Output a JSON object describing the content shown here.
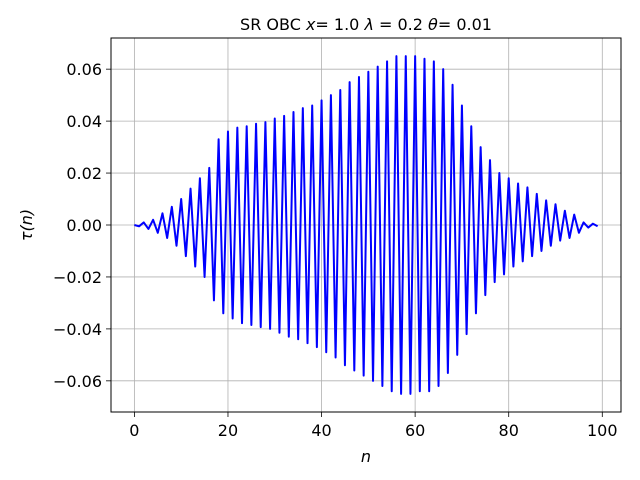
{
  "chart_data": {
    "type": "line",
    "title": "SR OBC x= 1.0 λ = 0.2 θ= 0.01",
    "title_parts": {
      "prefix": "SR OBC ",
      "var_x": "x",
      "x_value": "= 1.0 ",
      "var_lambda": "λ",
      "lambda_value": " = 0.2 ",
      "var_theta": "θ",
      "theta_value": "= 0.01"
    },
    "xlabel": "n",
    "ylabel": "τ(n)",
    "xlim": [
      -5,
      104
    ],
    "ylim": [
      -0.072,
      0.072
    ],
    "xticks": [
      0,
      20,
      40,
      60,
      80,
      100
    ],
    "xtick_labels": [
      "0",
      "20",
      "40",
      "60",
      "80",
      "100"
    ],
    "yticks": [
      -0.06,
      -0.04,
      -0.02,
      0.0,
      0.02,
      0.04,
      0.06
    ],
    "ytick_labels": [
      "−0.06",
      "−0.04",
      "−0.02",
      "0.00",
      "0.02",
      "0.04",
      "0.06"
    ],
    "grid": true,
    "line_color": "#0000ff",
    "grid_color": "#b0b0b0",
    "series": [
      {
        "x": [
          0,
          1,
          2,
          3,
          4,
          5,
          6,
          7,
          8,
          9,
          10,
          11,
          12,
          13,
          14,
          15,
          16,
          17,
          18,
          19,
          20,
          21,
          22,
          23,
          24,
          25,
          26,
          27,
          28,
          29,
          30,
          31,
          32,
          33,
          34,
          35,
          36,
          37,
          38,
          39,
          40,
          41,
          42,
          43,
          44,
          45,
          46,
          47,
          48,
          49,
          50,
          51,
          52,
          53,
          54,
          55,
          56,
          57,
          58,
          59,
          60,
          61,
          62,
          63,
          64,
          65,
          66,
          67,
          68,
          69,
          70,
          71,
          72,
          73,
          74,
          75,
          76,
          77,
          78,
          79,
          80,
          81,
          82,
          83,
          84,
          85,
          86,
          87,
          88,
          89,
          90,
          91,
          92,
          93,
          94,
          95,
          96,
          97,
          98,
          99
        ],
        "values": [
          0.0,
          -0.0005,
          0.001,
          -0.0015,
          0.002,
          -0.003,
          0.0045,
          -0.005,
          0.007,
          -0.008,
          0.01,
          -0.012,
          0.014,
          -0.016,
          0.018,
          -0.02,
          0.022,
          -0.029,
          0.033,
          -0.034,
          0.036,
          -0.036,
          0.0375,
          -0.0378,
          0.038,
          -0.0385,
          0.039,
          -0.0393,
          0.0396,
          -0.04,
          0.041,
          -0.0415,
          0.042,
          -0.043,
          0.0435,
          -0.044,
          0.045,
          -0.0455,
          0.046,
          -0.047,
          0.048,
          -0.049,
          0.05,
          -0.051,
          0.052,
          -0.054,
          0.055,
          -0.056,
          0.057,
          -0.058,
          0.059,
          -0.06,
          0.061,
          -0.062,
          0.063,
          -0.064,
          0.065,
          -0.065,
          0.065,
          -0.065,
          0.065,
          -0.064,
          0.064,
          -0.064,
          0.063,
          -0.062,
          0.06,
          -0.057,
          0.054,
          -0.05,
          0.046,
          -0.042,
          0.038,
          -0.034,
          0.03,
          -0.027,
          0.025,
          -0.022,
          0.02,
          -0.019,
          0.018,
          -0.016,
          0.016,
          -0.014,
          0.0145,
          -0.012,
          0.012,
          -0.01,
          0.0095,
          -0.008,
          0.008,
          -0.006,
          0.0055,
          -0.005,
          0.004,
          -0.003,
          0.001,
          -0.001,
          0.0005,
          -0.0005
        ]
      }
    ]
  }
}
